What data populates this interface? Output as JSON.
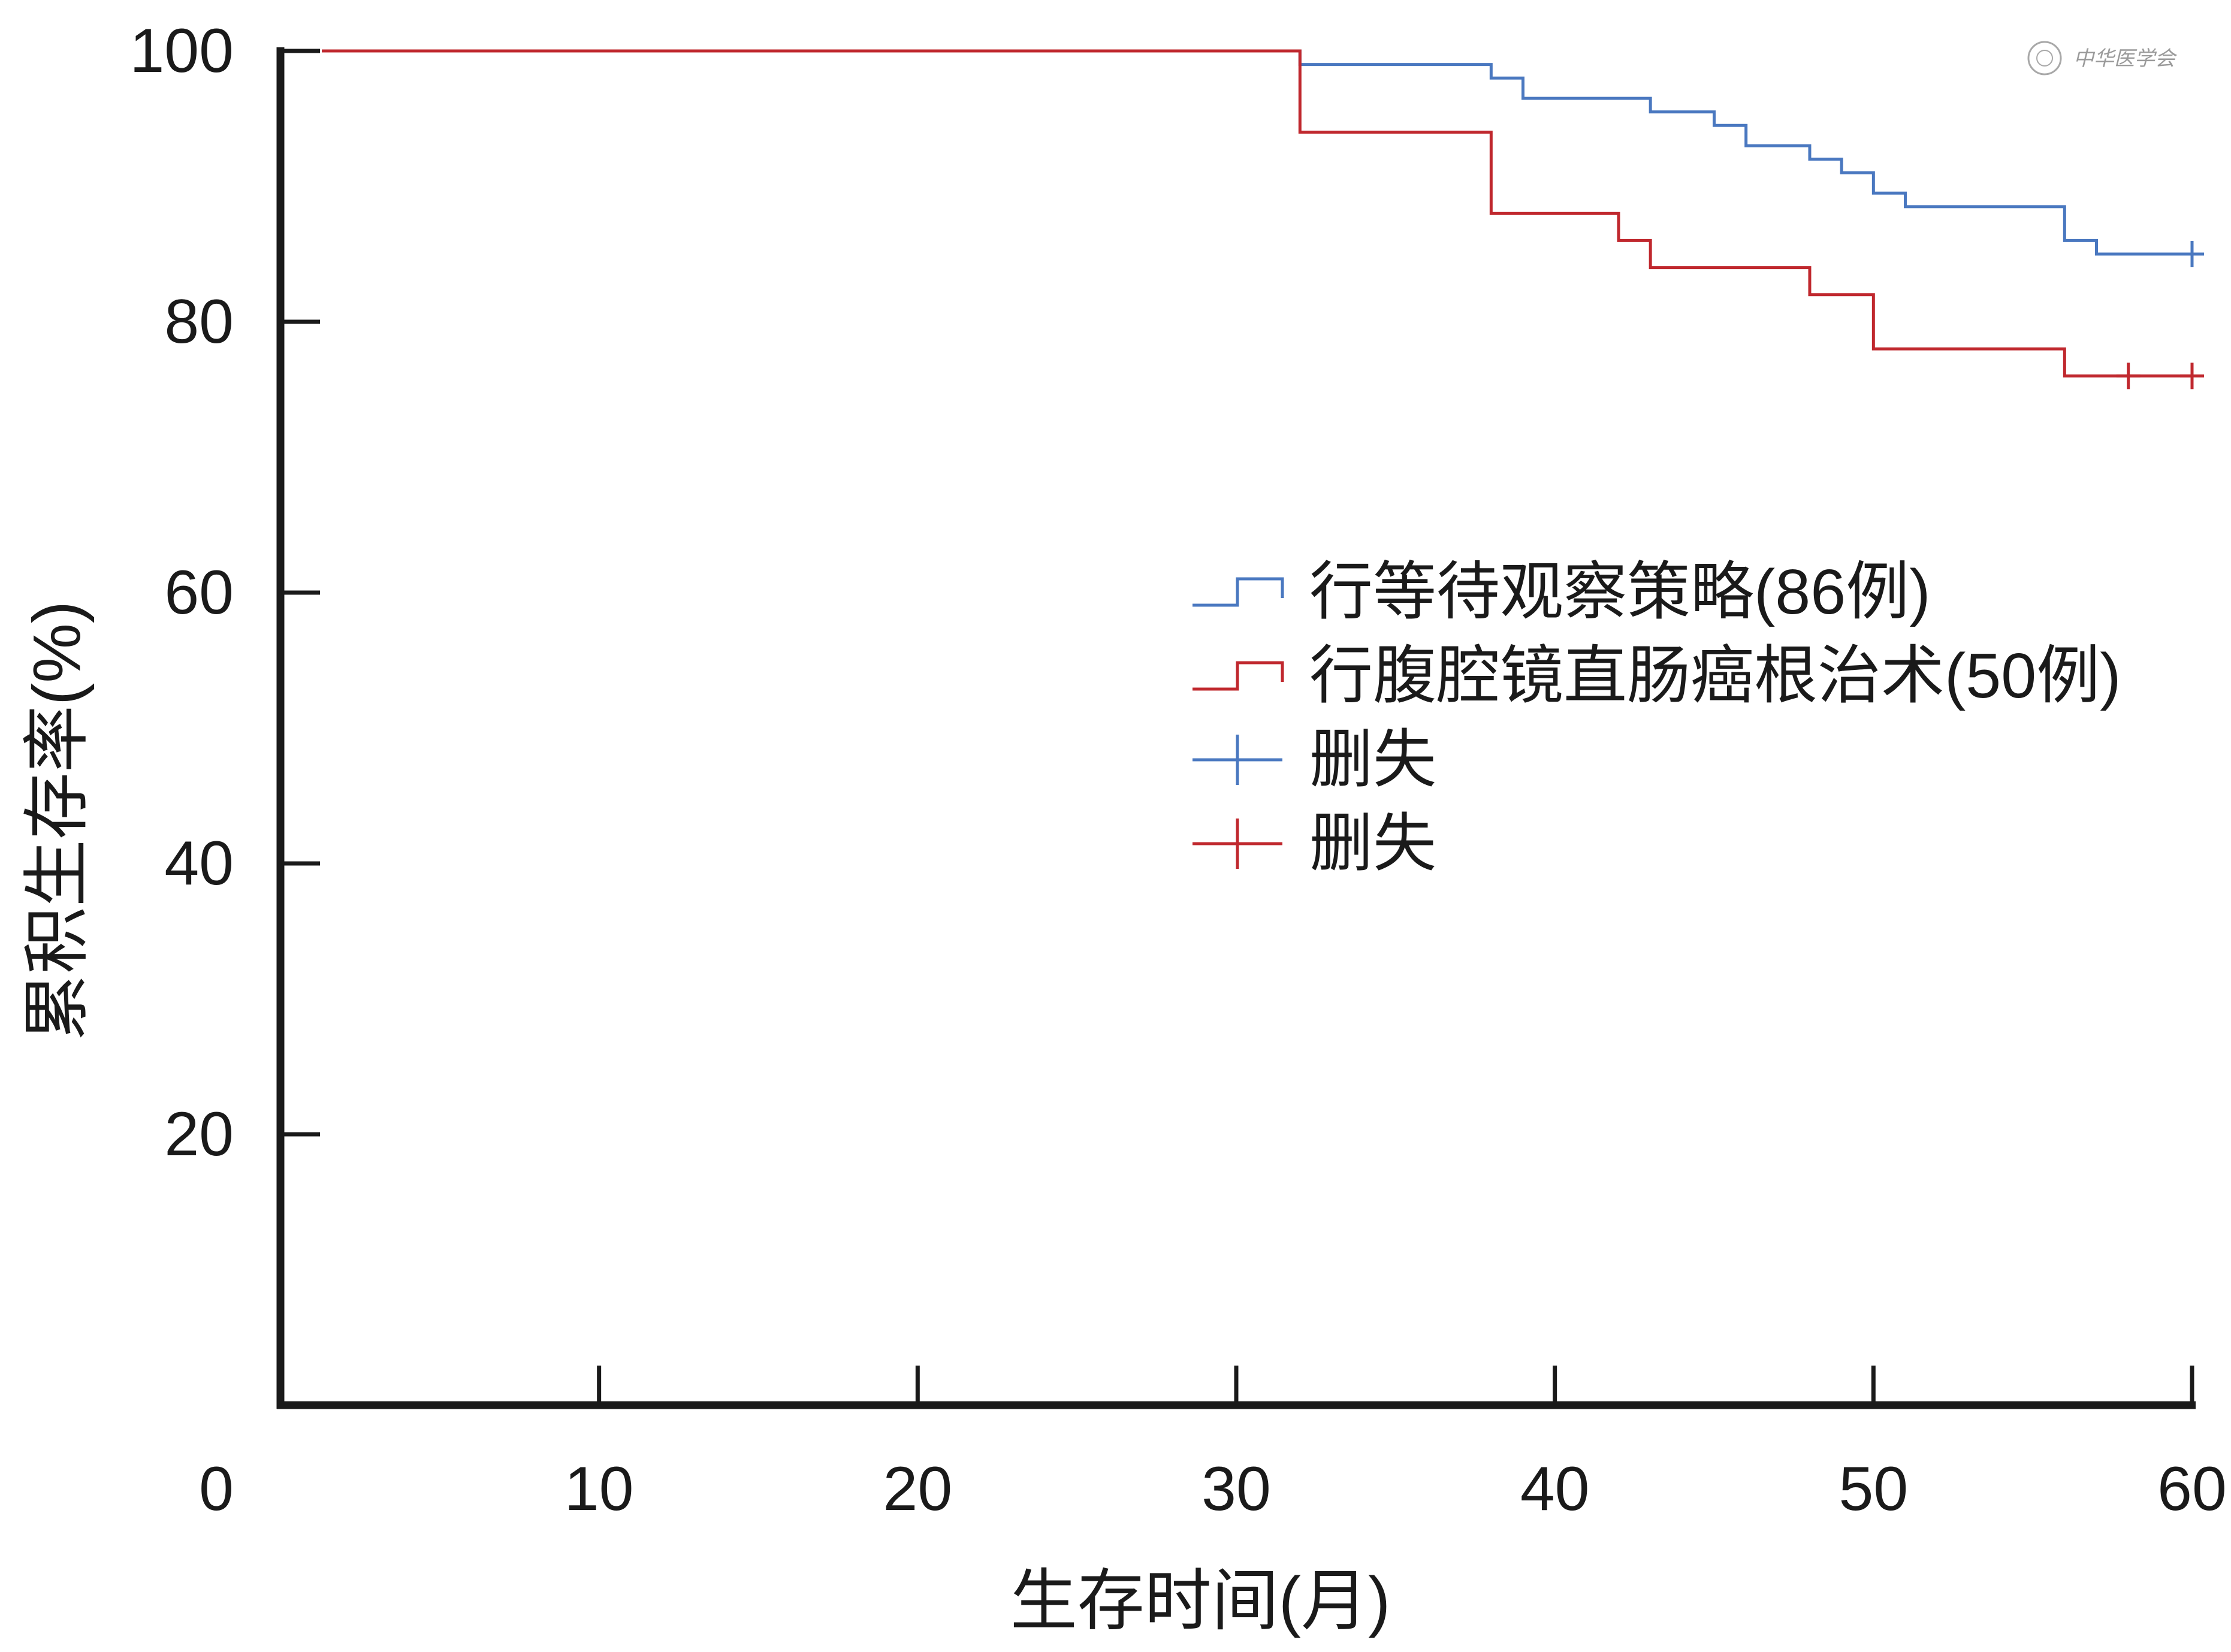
{
  "watermark": "中华医学会",
  "chart_data": {
    "type": "line",
    "subtype": "kaplan-meier-step",
    "title": "",
    "xlabel": "生存时间(月)",
    "ylabel": "累积生存率(%)",
    "xlim": [
      0,
      60
    ],
    "ylim": [
      0,
      100
    ],
    "x_ticks": [
      "0",
      "10",
      "20",
      "30",
      "40",
      "50",
      "60"
    ],
    "y_ticks": [
      "20",
      "40",
      "60",
      "80",
      "100"
    ],
    "x_tick_values": [
      0,
      10,
      20,
      30,
      40,
      50,
      60
    ],
    "y_tick_values": [
      20,
      40,
      60,
      80,
      100
    ],
    "grid": false,
    "legend_position": "center-right",
    "series": [
      {
        "name": "行等待观察策略(86例)",
        "color": "#4a78c0",
        "x": [
          1.3,
          32,
          38,
          39,
          43,
          45,
          46,
          48,
          49,
          50,
          51,
          56,
          57,
          60
        ],
        "y": [
          100,
          99,
          98,
          96.5,
          95.5,
          94.5,
          93,
          92,
          91,
          89.5,
          88.5,
          86,
          85,
          85
        ],
        "censored": [
          {
            "x": 60,
            "y": 85
          }
        ]
      },
      {
        "name": "行腹腔镜直肠癌根治术(50例)",
        "color": "#c0282e",
        "x": [
          1.3,
          32,
          38,
          42,
          43,
          48,
          50,
          56,
          60
        ],
        "y": [
          100,
          94,
          88,
          86,
          84,
          82,
          78,
          76,
          76
        ],
        "censored": [
          {
            "x": 58,
            "y": 76
          },
          {
            "x": 60,
            "y": 76
          }
        ]
      }
    ],
    "legend": [
      {
        "label": "行等待观察策略(86例)",
        "symbol": "step",
        "color": "#4a78c0"
      },
      {
        "label": "行腹腔镜直肠癌根治术(50例)",
        "symbol": "step",
        "color": "#c0282e"
      },
      {
        "label": "删失",
        "symbol": "plus",
        "color": "#4a78c0"
      },
      {
        "label": "删失",
        "symbol": "plus",
        "color": "#c0282e"
      }
    ]
  }
}
